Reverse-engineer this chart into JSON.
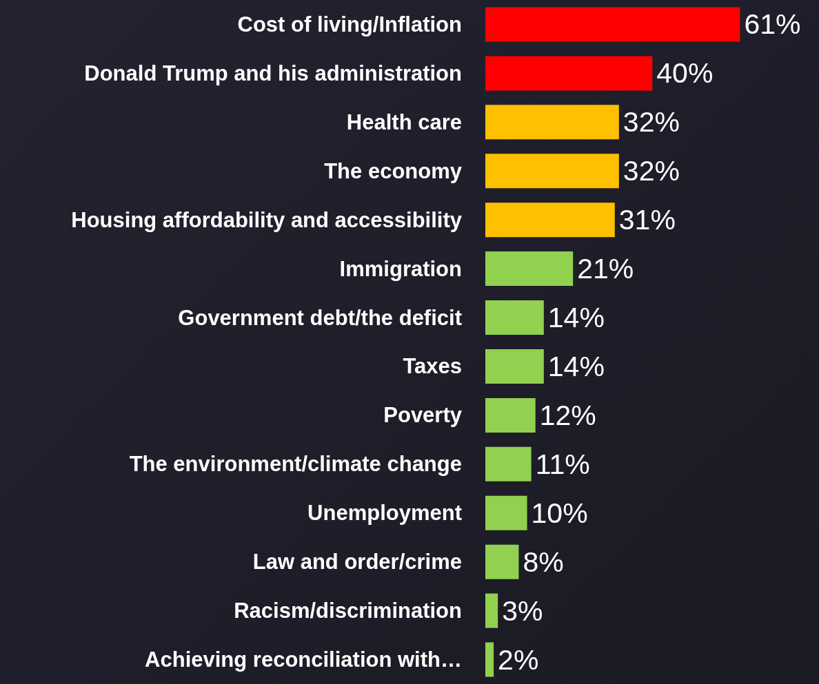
{
  "chart_data": {
    "type": "bar",
    "orientation": "horizontal",
    "categories": [
      "Cost of living/Inflation",
      "Donald Trump and his administration",
      "Health care",
      "The economy",
      "Housing affordability and accessibility",
      "Immigration",
      "Government debt/the deficit",
      "Taxes",
      "Poverty",
      "The environment/climate change",
      "Unemployment",
      "Law and order/crime",
      "Racism/discrimination",
      "Achieving reconciliation with…"
    ],
    "values": [
      61,
      40,
      32,
      32,
      31,
      21,
      14,
      14,
      12,
      11,
      10,
      8,
      3,
      2
    ],
    "colors": [
      "#ff0000",
      "#ff0000",
      "#ffc000",
      "#ffc000",
      "#ffc000",
      "#92d050",
      "#92d050",
      "#92d050",
      "#92d050",
      "#92d050",
      "#92d050",
      "#92d050",
      "#92d050",
      "#92d050"
    ],
    "value_labels": [
      "61%",
      "40%",
      "32%",
      "32%",
      "31%",
      "21%",
      "14%",
      "14%",
      "12%",
      "11%",
      "10%",
      "8%",
      "3%",
      "2%"
    ],
    "grid": false
  }
}
